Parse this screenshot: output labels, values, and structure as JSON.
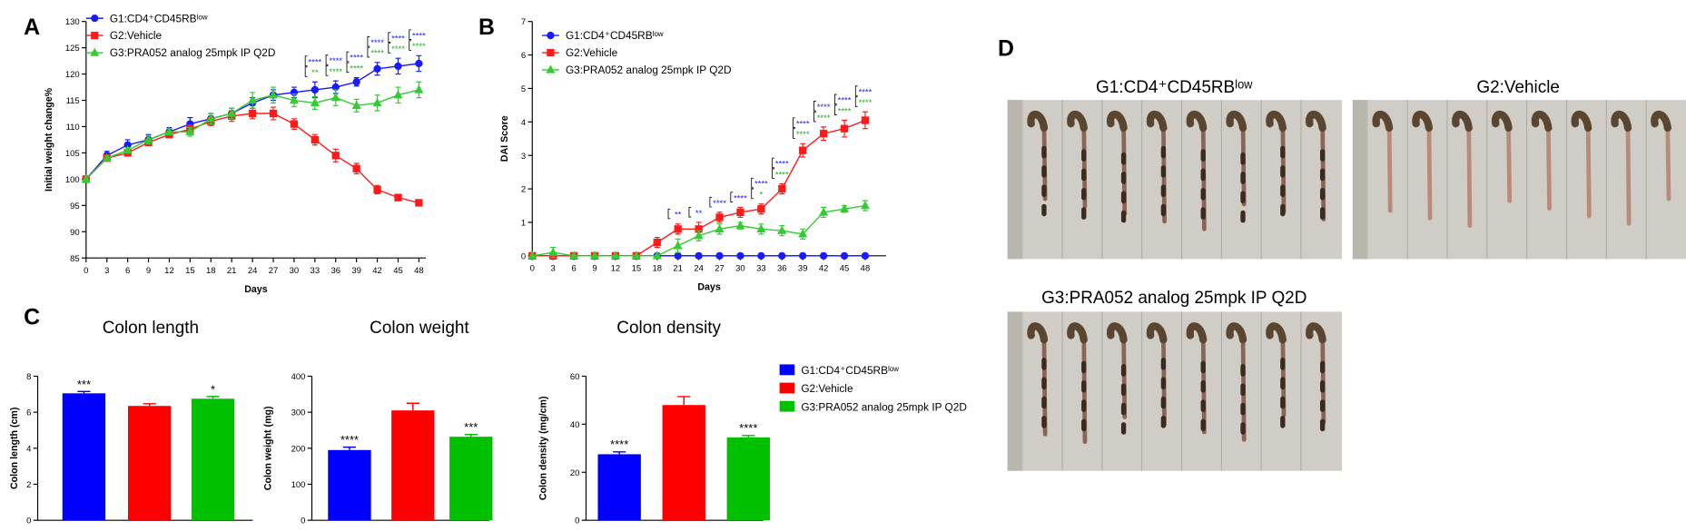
{
  "panel_labels": [
    "A",
    "B",
    "C",
    "D"
  ],
  "chart_data": [
    {
      "type": "line",
      "x_label": "Days",
      "y_label": "Initial weight change%",
      "x": [
        0,
        3,
        6,
        9,
        12,
        15,
        18,
        21,
        24,
        27,
        30,
        33,
        36,
        39,
        42,
        45,
        48
      ],
      "xlim": [
        0,
        49
      ],
      "xticks": [
        0,
        3,
        6,
        9,
        12,
        15,
        18,
        21,
        24,
        27,
        30,
        33,
        36,
        39,
        42,
        45,
        48
      ],
      "ylim": [
        85,
        130
      ],
      "yticks": [
        85,
        90,
        95,
        100,
        105,
        110,
        115,
        120,
        125,
        130
      ],
      "series": [
        {
          "name": "G1:CD4⁺CD45RBˡᵒʷ",
          "color": "#1a1aff",
          "marker": "circle",
          "values": [
            100,
            104.5,
            106.5,
            107.5,
            109,
            110.5,
            111.5,
            112.5,
            114.5,
            116,
            116.5,
            117,
            117.5,
            118.5,
            121,
            121.5,
            122
          ],
          "errors": [
            0,
            0.8,
            1,
            1,
            0.8,
            1.2,
            1,
            1,
            1,
            1,
            1,
            1.5,
            1.2,
            0.8,
            1.2,
            1.5,
            1.5
          ]
        },
        {
          "name": "G2:Vehicle",
          "color": "#ff1a1a",
          "marker": "square",
          "values": [
            100,
            104,
            105,
            107,
            108.5,
            109.5,
            111,
            112,
            112.5,
            112.5,
            110.5,
            107.5,
            104.5,
            102,
            98,
            96.5,
            95.5
          ],
          "errors": [
            0,
            0.5,
            0.5,
            0.6,
            0.6,
            0.8,
            0.8,
            1,
            1,
            1.2,
            1,
            1,
            1.2,
            1,
            0.8,
            0.6,
            0.5
          ]
        },
        {
          "name": "G3:PRA052 analog 25mpk IP Q2D",
          "color": "#33cc33",
          "marker": "triangle",
          "values": [
            100,
            104,
            105.5,
            107.5,
            109,
            109,
            111.5,
            112.5,
            115,
            116,
            115,
            114.5,
            115.5,
            114,
            114.5,
            116,
            117
          ],
          "errors": [
            0,
            0.5,
            0.5,
            0.8,
            0.6,
            0.8,
            1,
            1,
            1.5,
            1.5,
            1.2,
            1.2,
            1.5,
            1.2,
            1.5,
            1.5,
            1.5
          ]
        }
      ],
      "annotations": [
        {
          "x": 33,
          "label": "****",
          "color": "#1a1aff"
        },
        {
          "x": 33,
          "label": "**",
          "color": "#22aa22"
        },
        {
          "x": 36,
          "label": "****",
          "color": "#1a1aff"
        },
        {
          "x": 36,
          "label": "****",
          "color": "#22aa22"
        },
        {
          "x": 39,
          "label": "****",
          "color": "#1a1aff"
        },
        {
          "x": 39,
          "label": "****",
          "color": "#22aa22"
        },
        {
          "x": 42,
          "label": "****",
          "color": "#1a1aff"
        },
        {
          "x": 42,
          "label": "****",
          "color": "#22aa22"
        },
        {
          "x": 45,
          "label": "****",
          "color": "#1a1aff"
        },
        {
          "x": 45,
          "label": "****",
          "color": "#22aa22"
        },
        {
          "x": 48,
          "label": "****",
          "color": "#1a1aff"
        },
        {
          "x": 48,
          "label": "****",
          "color": "#22aa22"
        }
      ]
    },
    {
      "type": "line",
      "x_label": "Days",
      "y_label": "DAI Score",
      "x": [
        0,
        3,
        6,
        9,
        12,
        15,
        18,
        21,
        24,
        27,
        30,
        33,
        36,
        39,
        42,
        45,
        48
      ],
      "xlim": [
        0,
        51
      ],
      "xticks": [
        0,
        3,
        6,
        9,
        12,
        15,
        18,
        21,
        24,
        27,
        30,
        33,
        36,
        39,
        42,
        45,
        48
      ],
      "ylim": [
        0,
        7
      ],
      "yticks": [
        0,
        1,
        2,
        3,
        4,
        5,
        6,
        7
      ],
      "series": [
        {
          "name": "G1:CD4⁺CD45RBˡᵒʷ",
          "color": "#1a1aff",
          "marker": "circle",
          "values": [
            0,
            0,
            0,
            0,
            0,
            0,
            0,
            0,
            0,
            0,
            0,
            0,
            0,
            0,
            0,
            0,
            0
          ],
          "errors": [
            0,
            0,
            0,
            0,
            0,
            0,
            0,
            0,
            0,
            0,
            0,
            0,
            0,
            0,
            0,
            0,
            0
          ]
        },
        {
          "name": "G2:Vehicle",
          "color": "#ff1a1a",
          "marker": "square",
          "values": [
            0,
            0,
            0,
            0,
            0,
            0,
            0.4,
            0.8,
            0.8,
            1.15,
            1.3,
            1.4,
            2,
            3.15,
            3.65,
            3.8,
            4.05
          ],
          "errors": [
            0,
            0,
            0,
            0,
            0,
            0,
            0.15,
            0.15,
            0.2,
            0.15,
            0.15,
            0.15,
            0.15,
            0.2,
            0.2,
            0.25,
            0.25
          ]
        },
        {
          "name": "G3:PRA052 analog 25mpk IP Q2D",
          "color": "#33cc33",
          "marker": "triangle",
          "values": [
            0,
            0.1,
            0,
            0,
            0,
            0,
            0,
            0.3,
            0.6,
            0.8,
            0.9,
            0.8,
            0.75,
            0.65,
            1.3,
            1.4,
            1.5
          ],
          "errors": [
            0,
            0.15,
            0,
            0,
            0,
            0,
            0,
            0.2,
            0.15,
            0.15,
            0.1,
            0.15,
            0.15,
            0.15,
            0.15,
            0.1,
            0.15
          ]
        }
      ],
      "annotations": [
        {
          "x": 21,
          "label": "**",
          "color": "#1a1aff"
        },
        {
          "x": 24,
          "label": "**",
          "color": "#1a1aff"
        },
        {
          "x": 27,
          "label": "****",
          "color": "#1a1aff"
        },
        {
          "x": 30,
          "label": "****",
          "color": "#1a1aff"
        },
        {
          "x": 33,
          "label": "****",
          "color": "#1a1aff"
        },
        {
          "x": 33,
          "label": "*",
          "color": "#22aa22"
        },
        {
          "x": 36,
          "label": "****",
          "color": "#1a1aff"
        },
        {
          "x": 36,
          "label": "****",
          "color": "#22aa22"
        },
        {
          "x": 39,
          "label": "****",
          "color": "#1a1aff"
        },
        {
          "x": 39,
          "label": "****",
          "color": "#22aa22"
        },
        {
          "x": 42,
          "label": "****",
          "color": "#1a1aff"
        },
        {
          "x": 42,
          "label": "****",
          "color": "#22aa22"
        },
        {
          "x": 45,
          "label": "****",
          "color": "#1a1aff"
        },
        {
          "x": 45,
          "label": "****",
          "color": "#22aa22"
        },
        {
          "x": 48,
          "label": "****",
          "color": "#1a1aff"
        },
        {
          "x": 48,
          "label": "****",
          "color": "#22aa22"
        }
      ]
    },
    {
      "type": "bar",
      "title": "Colon length",
      "y_label": "Colon length (cm)",
      "values": [
        7.05,
        6.35,
        6.75
      ],
      "errors": [
        0.1,
        0.12,
        0.12
      ],
      "colors": [
        "#0000ff",
        "#ff0000",
        "#00c000"
      ],
      "significance": [
        "***",
        null,
        "*"
      ],
      "ylim": [
        0,
        8
      ],
      "yticks": [
        0,
        2,
        4,
        6,
        8
      ]
    },
    {
      "type": "bar",
      "title": "Colon weight",
      "y_label": "Colon weight (mg)",
      "values": [
        195,
        305,
        232
      ],
      "errors": [
        8,
        20,
        6
      ],
      "colors": [
        "#0000ff",
        "#ff0000",
        "#00c000"
      ],
      "significance": [
        "****",
        null,
        "***"
      ],
      "ylim": [
        0,
        400
      ],
      "yticks": [
        0,
        100,
        200,
        300,
        400
      ]
    },
    {
      "type": "bar",
      "title": "Colon density",
      "y_label": "Colon density (mg/cm)",
      "values": [
        27.5,
        48,
        34.5
      ],
      "errors": [
        1,
        3.5,
        0.8
      ],
      "colors": [
        "#0000ff",
        "#ff0000",
        "#00c000"
      ],
      "significance": [
        "****",
        null,
        "****"
      ],
      "ylim": [
        0,
        60
      ],
      "yticks": [
        0,
        20,
        40,
        60
      ]
    }
  ],
  "legend_c": [
    {
      "name": "G1:CD4⁺CD45RBˡᵒʷ",
      "color": "#0000ff"
    },
    {
      "name": "G2:Vehicle",
      "color": "#ff0000"
    },
    {
      "name": "G3:PRA052 analog 25mpk IP Q2D",
      "color": "#00c000"
    }
  ],
  "photos": [
    {
      "title": "G1:CD4⁺CD45RBˡᵒʷ"
    },
    {
      "title": "G2:Vehicle"
    },
    {
      "title": "G3:PRA052 analog 25mpk IP Q2D"
    }
  ]
}
